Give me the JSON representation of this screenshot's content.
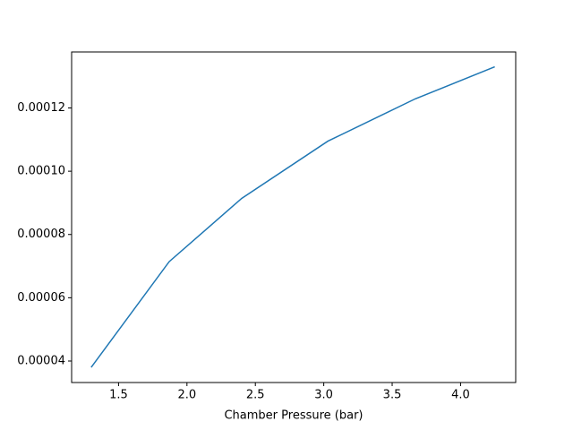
{
  "chart_data": {
    "type": "line",
    "x_label": "Chamber Pressure (bar)",
    "x": [
      1.3,
      1.87,
      2.4,
      3.03,
      3.67,
      4.25
    ],
    "series": [
      {
        "color": "#1f77b4",
        "values": [
          3.8e-05,
          7.14e-05,
          9.14e-05,
          0.0001095,
          0.0001229,
          0.000133
        ]
      }
    ],
    "xlim": [
      1.157,
      4.403
    ],
    "xticks": [
      1.5,
      {
        "value": 2.0,
        "label": "2.0"
      },
      2.5,
      {
        "value": 3.0,
        "label": "3.0"
      },
      3.5,
      {
        "value": 4.0,
        "label": "4.0"
      }
    ],
    "ylim": [
      3.32e-05,
      0.0001377
    ],
    "yticks": [
      4e-05,
      6e-05,
      8e-05,
      {
        "value": 0.0001,
        "label": "0.00010"
      },
      0.00012
    ]
  }
}
